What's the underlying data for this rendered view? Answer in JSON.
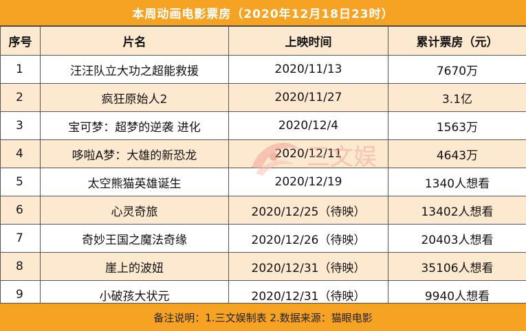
{
  "title": "本周动画电影票房（2020年12月18日23时）",
  "table": {
    "headers": [
      "序号",
      "片名",
      "上映时间",
      "累计票房（元）"
    ],
    "rows": [
      {
        "idx": "1",
        "name": "汪汪队立大功之超能救援",
        "date": "2020/11/13",
        "box": "7670万"
      },
      {
        "idx": "2",
        "name": "疯狂原始人2",
        "date": "2020/11/27",
        "box": "3.1亿"
      },
      {
        "idx": "3",
        "name": "宝可梦：超梦的逆袭 进化",
        "date": "2020/12/4",
        "box": "1563万"
      },
      {
        "idx": "4",
        "name": "哆啦A梦：大雄的新恐龙",
        "date": "2020/12/11",
        "box": "4643万"
      },
      {
        "idx": "5",
        "name": "太空熊猫英雄诞生",
        "date": "2020/12/19",
        "box": "1340人想看"
      },
      {
        "idx": "6",
        "name": "心灵奇旅",
        "date": "2020/12/25（待映）",
        "box": "13402人想看"
      },
      {
        "idx": "7",
        "name": "奇妙王国之魔法奇缘",
        "date": "2020/12/26（待映）",
        "box": "20403人想看"
      },
      {
        "idx": "8",
        "name": "崖上的波妞",
        "date": "2020/12/31（待映）",
        "box": "35106人想看"
      },
      {
        "idx": "9",
        "name": "小破孩大状元",
        "date": "2020/12/31（待映）",
        "box": "9940人想看"
      }
    ]
  },
  "footer": "备注说明：1.三文娱制表 2.数据来源：猫眼电影",
  "watermark": "三文娱",
  "colors": {
    "header": "#f6a323",
    "alt_row": "#fde9cf",
    "watermark": "#f3a39a"
  }
}
